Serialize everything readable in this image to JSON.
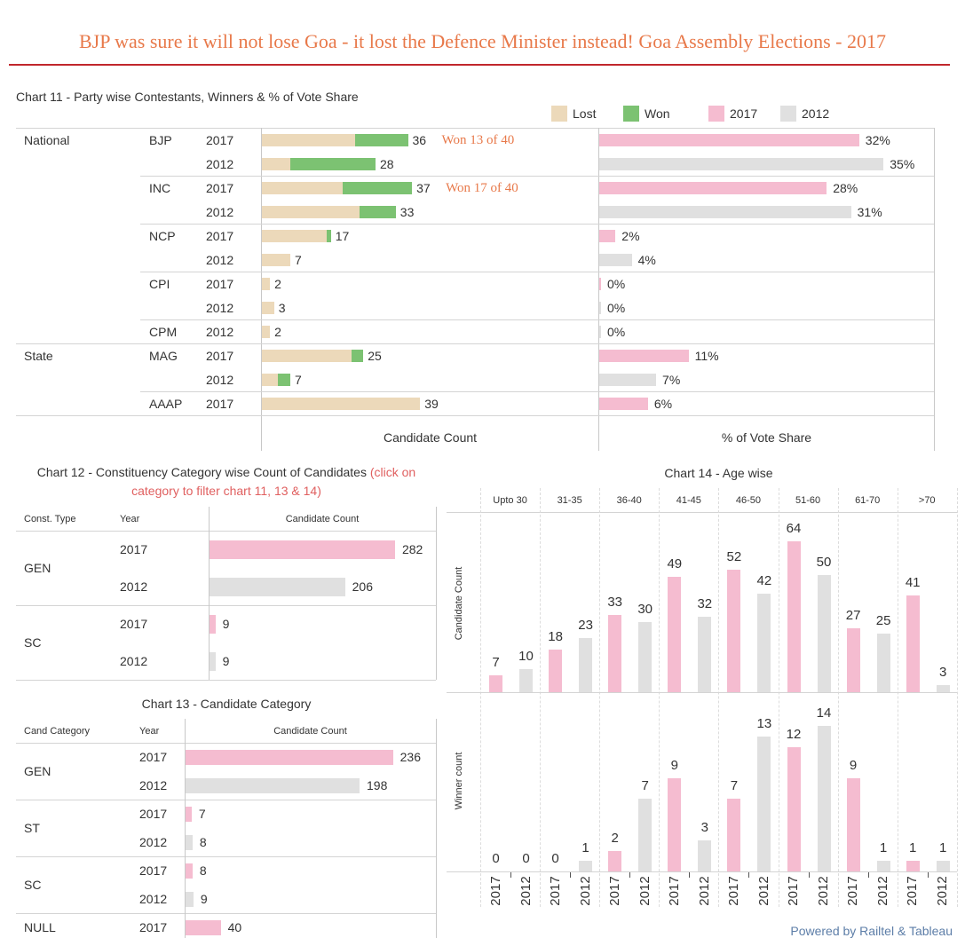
{
  "page": {
    "title": "BJP was sure it will not lose Goa - it lost the Defence Minister instead! Goa Assembly Elections - 2017",
    "powered_by": "Powered by Railtel & Tableau"
  },
  "colors": {
    "title": "#e8794a",
    "title_rule": "#c1272d",
    "lost": "#ecd9ba",
    "won": "#7cc272",
    "year_2017": "#f5bcd0",
    "year_2012": "#e0e0e0",
    "note": "#e06060",
    "annotation": "#e8794a",
    "powered_by": "#5d7ea8"
  },
  "chart_data": [
    {
      "id": "chart11",
      "type": "bar",
      "title": "Chart 11 - Party wise Contestants, Winners & % of Vote Share",
      "legend_placement": "top-right",
      "legend": [
        {
          "label": "Lost",
          "color_key": "lost"
        },
        {
          "label": "Won",
          "color_key": "won"
        },
        {
          "label": "2017",
          "color_key": "year_2017"
        },
        {
          "label": "2012",
          "color_key": "year_2012"
        }
      ],
      "xlabels": [
        "Candidate Count",
        "% of Vote Share"
      ],
      "rows": [
        {
          "category": "National",
          "party": "BJP",
          "year": "2017",
          "candidates": 36,
          "won": 13,
          "lost": 23,
          "vote_share": 32,
          "vote_share_label": "32%",
          "annotation": "Won 13 of 40"
        },
        {
          "category": "National",
          "party": "BJP",
          "year": "2012",
          "candidates": 28,
          "won": 21,
          "lost": 7,
          "vote_share": 35,
          "vote_share_label": "35%"
        },
        {
          "category": "National",
          "party": "INC",
          "year": "2017",
          "candidates": 37,
          "won": 17,
          "lost": 20,
          "vote_share": 28,
          "vote_share_label": "28%",
          "annotation": "Won 17 of 40"
        },
        {
          "category": "National",
          "party": "INC",
          "year": "2012",
          "candidates": 33,
          "won": 9,
          "lost": 24,
          "vote_share": 31,
          "vote_share_label": "31%"
        },
        {
          "category": "National",
          "party": "NCP",
          "year": "2017",
          "candidates": 17,
          "won": 1,
          "lost": 16,
          "vote_share": 2,
          "vote_share_label": "2%"
        },
        {
          "category": "National",
          "party": "NCP",
          "year": "2012",
          "candidates": 7,
          "won": 0,
          "lost": 7,
          "vote_share": 4,
          "vote_share_label": "4%"
        },
        {
          "category": "National",
          "party": "CPI",
          "year": "2017",
          "candidates": 2,
          "won": 0,
          "lost": 2,
          "vote_share": 0,
          "vote_share_label": "0%"
        },
        {
          "category": "National",
          "party": "CPI",
          "year": "2012",
          "candidates": 3,
          "won": 0,
          "lost": 3,
          "vote_share": 0,
          "vote_share_label": "0%"
        },
        {
          "category": "National",
          "party": "CPM",
          "year": "2012",
          "candidates": 2,
          "won": 0,
          "lost": 2,
          "vote_share": 0,
          "vote_share_label": "0%"
        },
        {
          "category": "State",
          "party": "MAG",
          "year": "2017",
          "candidates": 25,
          "won": 3,
          "lost": 22,
          "vote_share": 11,
          "vote_share_label": "11%"
        },
        {
          "category": "State",
          "party": "MAG",
          "year": "2012",
          "candidates": 7,
          "won": 3,
          "lost": 4,
          "vote_share": 7,
          "vote_share_label": "7%"
        },
        {
          "category": "State",
          "party": "AAAP",
          "year": "2017",
          "candidates": 39,
          "won": 0,
          "lost": 39,
          "vote_share": 6,
          "vote_share_label": "6%"
        }
      ]
    },
    {
      "id": "chart12",
      "type": "bar",
      "title": "Chart 12 - Constituency Category wise Count of Candidates",
      "note_line1": "(click on",
      "note_line2": "category to filter chart 11, 13 & 14)",
      "headers": [
        "Const. Type",
        "Year",
        "Candidate Count"
      ],
      "groups": [
        {
          "label": "GEN",
          "rows": [
            {
              "year": "2017",
              "value": 282
            },
            {
              "year": "2012",
              "value": 206
            }
          ]
        },
        {
          "label": "SC",
          "rows": [
            {
              "year": "2017",
              "value": 9
            },
            {
              "year": "2012",
              "value": 9
            }
          ]
        }
      ]
    },
    {
      "id": "chart13",
      "type": "bar",
      "title": "Chart 13 - Candidate Category",
      "headers": [
        "Cand Category",
        "Year",
        "Candidate Count"
      ],
      "groups": [
        {
          "label": "GEN",
          "rows": [
            {
              "year": "2017",
              "value": 236
            },
            {
              "year": "2012",
              "value": 198
            }
          ]
        },
        {
          "label": "ST",
          "rows": [
            {
              "year": "2017",
              "value": 7
            },
            {
              "year": "2012",
              "value": 8
            }
          ]
        },
        {
          "label": "SC",
          "rows": [
            {
              "year": "2017",
              "value": 8
            },
            {
              "year": "2012",
              "value": 9
            }
          ]
        },
        {
          "label": "NULL",
          "rows": [
            {
              "year": "2017",
              "value": 40
            }
          ]
        }
      ]
    },
    {
      "id": "chart14",
      "type": "bar",
      "title": "Chart 14 - Age wise",
      "categories": [
        "Upto 30",
        "31-35",
        "36-40",
        "41-45",
        "46-50",
        "51-60",
        "61-70",
        ">70"
      ],
      "panels": [
        {
          "ylabel": "Candidate Count",
          "series": [
            {
              "name": "2017",
              "values": [
                7,
                18,
                33,
                49,
                52,
                64,
                27,
                41
              ]
            },
            {
              "name": "2012",
              "values": [
                10,
                23,
                30,
                32,
                42,
                50,
                25,
                3
              ]
            }
          ]
        },
        {
          "ylabel": "Winner count",
          "series": [
            {
              "name": "2017",
              "values": [
                0,
                0,
                2,
                9,
                7,
                12,
                9,
                1
              ]
            },
            {
              "name": "2012",
              "values": [
                0,
                1,
                7,
                3,
                13,
                14,
                1,
                1
              ]
            }
          ]
        }
      ]
    }
  ]
}
